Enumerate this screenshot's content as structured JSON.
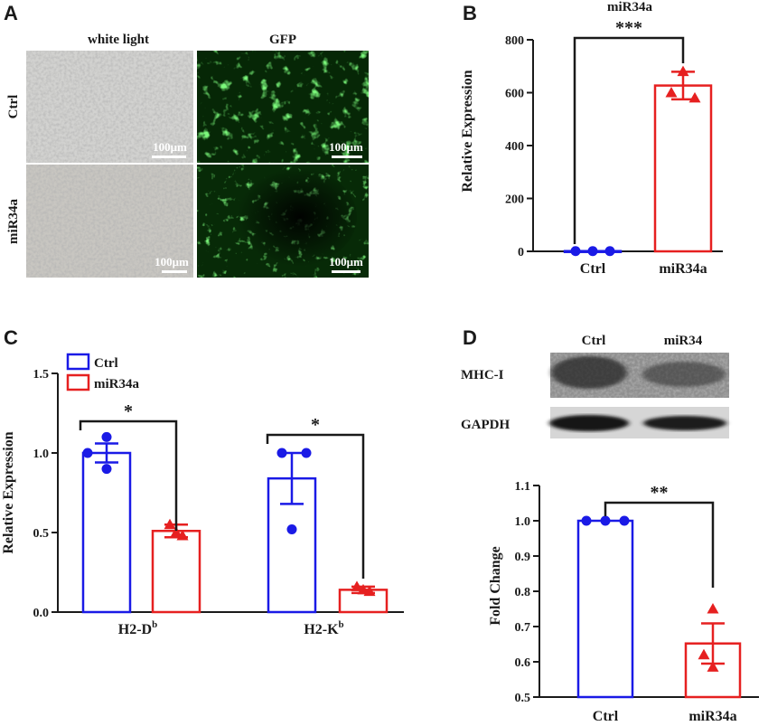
{
  "panels": {
    "a": {
      "letter": "A",
      "col_headers": [
        "white light",
        "GFP"
      ],
      "row_labels": [
        "Ctrl",
        "miR34a"
      ],
      "scale_bar": "100μm"
    },
    "b": {
      "letter": "B"
    },
    "c": {
      "letter": "C"
    },
    "d": {
      "letter": "D",
      "blot_lanes": [
        "Ctrl",
        "miR34"
      ],
      "blot_rows": [
        "MHC-I",
        "GAPDH"
      ]
    }
  },
  "colors": {
    "ctrl": "#1a1ae6",
    "mir": "#e62020",
    "axis": "#1a1a1a"
  },
  "chart_data": [
    {
      "id": "B",
      "type": "bar",
      "title": "miR34a",
      "ylabel": "Relative Expression",
      "xlabel": "",
      "categories": [
        "Ctrl",
        "miR34a"
      ],
      "values": [
        1,
        627
      ],
      "errors": [
        0,
        52
      ],
      "points": [
        [
          1,
          1,
          1
        ],
        [
          680,
          600,
          580
        ]
      ],
      "ylim": [
        0,
        800
      ],
      "yticks": [
        "0",
        "200",
        "400",
        "600",
        "800"
      ],
      "significance": [
        {
          "from": "Ctrl",
          "to": "miR34a",
          "label": "***"
        }
      ]
    },
    {
      "id": "C",
      "type": "bar",
      "ylabel": "Relative Expression",
      "categories": [
        "H2-D",
        "H2-K"
      ],
      "category_sup": [
        "b",
        "b"
      ],
      "series": [
        {
          "name": "Ctrl",
          "values": [
            1.0,
            0.84
          ],
          "errors": [
            0.06,
            0.16
          ],
          "points": [
            [
              1.1,
              1.0,
              0.9
            ],
            [
              1.0,
              1.0,
              0.52
            ]
          ]
        },
        {
          "name": "miR34a",
          "values": [
            0.51,
            0.14
          ],
          "errors": [
            0.04,
            0.02
          ],
          "points": [
            [
              0.55,
              0.48,
              0.5
            ],
            [
              0.16,
              0.13,
              0.14
            ]
          ]
        }
      ],
      "ylim": [
        0,
        1.5
      ],
      "yticks": [
        "0.0",
        "0.5",
        "1.0",
        "1.5"
      ],
      "legend": "top-left",
      "significance": [
        {
          "category": "H2-D",
          "label": "*"
        },
        {
          "category": "H2-K",
          "label": "*"
        }
      ]
    },
    {
      "id": "D",
      "type": "bar",
      "ylabel": "Fold Change",
      "categories": [
        "Ctrl",
        "miR34a"
      ],
      "values": [
        1.0,
        0.652
      ],
      "errors": [
        0,
        0.057
      ],
      "points": [
        [
          1.0,
          1.0,
          1.0
        ],
        [
          0.75,
          0.62,
          0.585
        ]
      ],
      "ylim": [
        0.5,
        1.1
      ],
      "yticks": [
        "0.5",
        "0.6",
        "0.7",
        "0.8",
        "0.9",
        "1.0",
        "1.1"
      ],
      "significance": [
        {
          "from": "Ctrl",
          "to": "miR34a",
          "label": "**"
        }
      ]
    }
  ]
}
